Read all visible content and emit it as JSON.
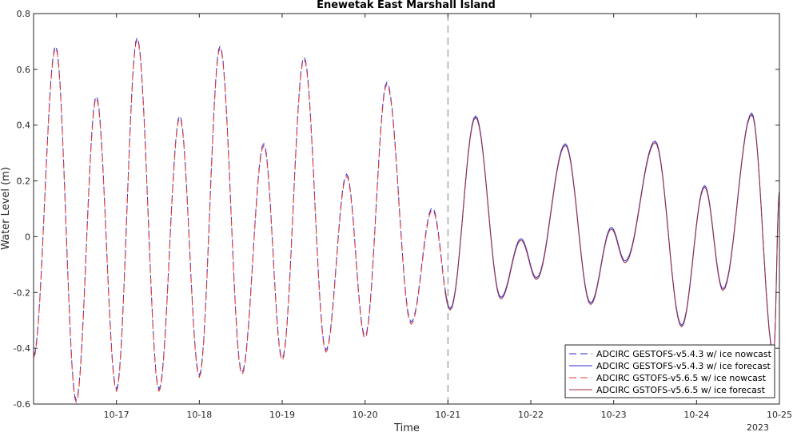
{
  "chart_data": {
    "type": "line",
    "title": "Enewetak East Marshall Island",
    "xlabel": "Time",
    "ylabel": "Water Level (m)",
    "year_label": "2023",
    "xlim": [
      "2023-10-16T00:00",
      "2023-10-25T00:00"
    ],
    "ylim": [
      -0.6,
      0.8
    ],
    "yticks": [
      -0.6,
      -0.4,
      -0.2,
      0,
      0.2,
      0.4,
      0.6,
      0.8
    ],
    "ytick_labels": [
      "-0.6",
      "-0.4",
      "-0.2",
      "0",
      "0.2",
      "0.4",
      "0.6",
      "0.8"
    ],
    "xticks": [
      "2023-10-17T00:00",
      "2023-10-18T00:00",
      "2023-10-19T00:00",
      "2023-10-20T00:00",
      "2023-10-21T00:00",
      "2023-10-22T00:00",
      "2023-10-23T00:00",
      "2023-10-24T00:00",
      "2023-10-25T00:00"
    ],
    "xtick_labels": [
      "10-17",
      "10-18",
      "10-19",
      "10-20",
      "10-21",
      "10-22",
      "10-23",
      "10-24",
      "10-25"
    ],
    "divider_time": "2023-10-21T00:00",
    "grid": false,
    "legend_position": "bottom-right",
    "extrema": [
      [
        "2023-10-16T00:00",
        -0.43
      ],
      [
        "2023-10-16T06:24",
        0.68
      ],
      [
        "2023-10-16T12:21",
        -0.59
      ],
      [
        "2023-10-16T18:10",
        0.5
      ],
      [
        "2023-10-17T00:00",
        -0.55
      ],
      [
        "2023-10-17T06:00",
        0.71
      ],
      [
        "2023-10-17T12:20",
        -0.55
      ],
      [
        "2023-10-17T18:20",
        0.43
      ],
      [
        "2023-10-18T00:00",
        -0.5
      ],
      [
        "2023-10-18T06:00",
        0.68
      ],
      [
        "2023-10-18T12:20",
        -0.49
      ],
      [
        "2023-10-18T18:40",
        0.33
      ],
      [
        "2023-10-19T00:00",
        -0.44
      ],
      [
        "2023-10-19T06:20",
        0.64
      ],
      [
        "2023-10-19T12:40",
        -0.41
      ],
      [
        "2023-10-19T18:40",
        0.22
      ],
      [
        "2023-10-20T00:00",
        -0.36
      ],
      [
        "2023-10-20T06:20",
        0.55
      ],
      [
        "2023-10-20T13:20",
        -0.31
      ],
      [
        "2023-10-20T19:30",
        0.1
      ],
      [
        "2023-10-21T00:40",
        -0.26
      ],
      [
        "2023-10-21T08:00",
        0.43
      ],
      [
        "2023-10-21T15:20",
        -0.22
      ],
      [
        "2023-10-21T21:10",
        -0.01
      ],
      [
        "2023-10-22T01:40",
        -0.15
      ],
      [
        "2023-10-22T10:00",
        0.33
      ],
      [
        "2023-10-22T17:20",
        -0.24
      ],
      [
        "2023-10-22T23:20",
        0.03
      ],
      [
        "2023-10-23T03:20",
        -0.09
      ],
      [
        "2023-10-23T12:00",
        0.34
      ],
      [
        "2023-10-23T19:40",
        -0.32
      ],
      [
        "2023-10-24T02:20",
        0.18
      ],
      [
        "2023-10-24T07:40",
        -0.19
      ],
      [
        "2023-10-24T16:00",
        0.44
      ],
      [
        "2023-10-24T22:20",
        -0.42
      ],
      [
        "2023-10-25T00:00",
        0.16
      ]
    ],
    "series": [
      {
        "name": "ADCIRC GESTOFS-v5.4.3 w/ ice nowcast",
        "color": "#2b2bd6",
        "dash": "dashed",
        "segment": "nowcast",
        "offset": 0.004
      },
      {
        "name": "ADCIRC GESTOFS-v5.4.3 w/ ice forecast",
        "color": "#2b2bd6",
        "dash": "solid",
        "segment": "forecast",
        "offset": 0.003
      },
      {
        "name": "ADCIRC GSTOFS-v5.6.5 w/ ice nowcast",
        "color": "#e8392f",
        "dash": "dashed",
        "segment": "nowcast",
        "offset": -0.004
      },
      {
        "name": "ADCIRC GSTOFS-v5.6.5 w/ ice forecast",
        "color": "#9b2f3a",
        "dash": "solid",
        "segment": "forecast",
        "offset": -0.003
      }
    ]
  }
}
